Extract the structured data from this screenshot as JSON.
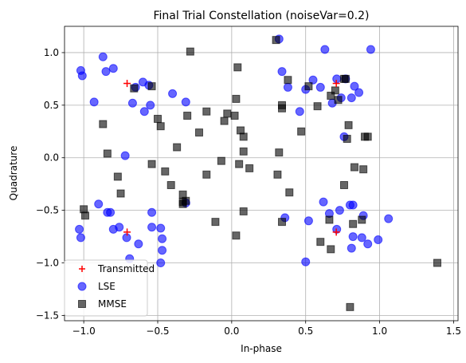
{
  "chart_data": {
    "type": "scatter",
    "title": "Final Trial Constellation (noiseVar=0.2)",
    "xlabel": "In-phase",
    "ylabel": "Quadrature",
    "xlim": [
      -1.13,
      1.53
    ],
    "ylim": [
      -1.55,
      1.25
    ],
    "xticks": [
      -1.0,
      -0.5,
      0.0,
      0.5,
      1.0,
      1.5
    ],
    "xtick_labels": [
      "−1.0",
      "−0.5",
      "0.0",
      "0.5",
      "1.0",
      "1.5"
    ],
    "yticks": [
      1.0,
      0.5,
      0.0,
      -0.5,
      -1.0,
      -1.5
    ],
    "ytick_labels": [
      "1.0",
      "0.5",
      "0.0",
      "−0.5",
      "−1.0",
      "−1.5"
    ],
    "grid": true,
    "legend_position": "lower-left",
    "series": [
      {
        "name": "Transmitted",
        "marker": "plus",
        "color": "#ff0000",
        "points": [
          [
            -0.707,
            0.707
          ],
          [
            0.707,
            0.707
          ],
          [
            -0.707,
            -0.707
          ],
          [
            0.707,
            -0.707
          ]
        ]
      },
      {
        "name": "LSE",
        "marker": "circle",
        "color": "#0000ff",
        "points": [
          [
            -1.02,
            0.83
          ],
          [
            -1.01,
            0.78
          ],
          [
            -0.93,
            0.53
          ],
          [
            -0.87,
            0.96
          ],
          [
            -0.85,
            0.82
          ],
          [
            -0.8,
            0.85
          ],
          [
            -0.67,
            0.52
          ],
          [
            -0.65,
            0.67
          ],
          [
            -0.6,
            0.72
          ],
          [
            -0.59,
            0.44
          ],
          [
            -0.55,
            0.5
          ],
          [
            -0.56,
            0.69
          ],
          [
            -0.4,
            0.61
          ],
          [
            -0.31,
            0.53
          ],
          [
            -0.72,
            0.02
          ],
          [
            -0.9,
            -0.44
          ],
          [
            -0.84,
            -0.52
          ],
          [
            -0.82,
            -0.52
          ],
          [
            -0.8,
            -0.68
          ],
          [
            -0.76,
            -0.66
          ],
          [
            -0.71,
            -0.76
          ],
          [
            -0.69,
            -0.96
          ],
          [
            -0.63,
            -0.82
          ],
          [
            -0.54,
            -0.66
          ],
          [
            -0.54,
            -0.52
          ],
          [
            -0.47,
            -0.88
          ],
          [
            -0.47,
            -0.77
          ],
          [
            -0.48,
            -1.0
          ],
          [
            -0.31,
            -0.43
          ],
          [
            -1.03,
            -0.68
          ],
          [
            -1.02,
            -0.76
          ],
          [
            0.32,
            1.13
          ],
          [
            0.34,
            0.82
          ],
          [
            0.38,
            0.67
          ],
          [
            0.46,
            0.44
          ],
          [
            0.5,
            0.65
          ],
          [
            0.55,
            0.74
          ],
          [
            0.6,
            0.67
          ],
          [
            0.63,
            1.03
          ],
          [
            0.68,
            0.52
          ],
          [
            0.71,
            0.75
          ],
          [
            0.74,
            0.57
          ],
          [
            0.77,
            0.75
          ],
          [
            0.81,
            0.57
          ],
          [
            0.83,
            0.68
          ],
          [
            0.86,
            0.62
          ],
          [
            0.94,
            1.03
          ],
          [
            0.76,
            0.2
          ],
          [
            0.5,
            -0.99
          ],
          [
            0.52,
            -0.6
          ],
          [
            0.62,
            -0.42
          ],
          [
            0.66,
            -0.53
          ],
          [
            0.71,
            -0.68
          ],
          [
            0.73,
            -0.5
          ],
          [
            0.8,
            -0.45
          ],
          [
            0.81,
            -0.86
          ],
          [
            0.82,
            -0.45
          ],
          [
            0.88,
            -0.76
          ],
          [
            0.89,
            -0.55
          ],
          [
            0.92,
            -0.82
          ],
          [
            0.99,
            -0.78
          ],
          [
            1.06,
            -0.58
          ],
          [
            -0.48,
            -0.67
          ],
          [
            0.82,
            -0.75
          ],
          [
            0.36,
            -0.57
          ]
        ]
      },
      {
        "name": "MMSE",
        "marker": "square",
        "color": "#000000",
        "points": [
          [
            -1.0,
            -0.49
          ],
          [
            -0.99,
            -0.55
          ],
          [
            -0.87,
            0.32
          ],
          [
            -0.84,
            0.04
          ],
          [
            -0.77,
            -0.18
          ],
          [
            -0.75,
            -0.34
          ],
          [
            -0.66,
            0.66
          ],
          [
            -0.54,
            0.68
          ],
          [
            -0.54,
            -0.06
          ],
          [
            -0.5,
            0.37
          ],
          [
            -0.48,
            0.3
          ],
          [
            -0.45,
            -0.13
          ],
          [
            -0.41,
            -0.26
          ],
          [
            -0.37,
            0.1
          ],
          [
            -0.33,
            -0.35
          ],
          [
            -0.33,
            -0.42
          ],
          [
            -0.31,
            -0.41
          ],
          [
            -0.3,
            0.4
          ],
          [
            -0.28,
            1.01
          ],
          [
            -0.22,
            0.24
          ],
          [
            -0.17,
            0.44
          ],
          [
            -0.17,
            -0.16
          ],
          [
            -0.11,
            -0.61
          ],
          [
            -0.07,
            -0.03
          ],
          [
            -0.03,
            0.42
          ],
          [
            -0.05,
            0.35
          ],
          [
            0.02,
            0.4
          ],
          [
            0.03,
            0.56
          ],
          [
            0.04,
            0.86
          ],
          [
            0.06,
            0.26
          ],
          [
            0.08,
            0.2
          ],
          [
            0.08,
            0.06
          ],
          [
            0.05,
            -0.06
          ],
          [
            0.08,
            -0.51
          ],
          [
            0.12,
            -0.1
          ],
          [
            0.03,
            -0.74
          ],
          [
            0.3,
            1.12
          ],
          [
            0.31,
            -0.16
          ],
          [
            0.32,
            0.05
          ],
          [
            0.34,
            0.5
          ],
          [
            0.34,
            0.47
          ],
          [
            0.38,
            0.74
          ],
          [
            0.39,
            -0.33
          ],
          [
            0.34,
            -0.61
          ],
          [
            0.47,
            0.25
          ],
          [
            0.52,
            0.68
          ],
          [
            0.58,
            0.49
          ],
          [
            0.6,
            -0.8
          ],
          [
            0.66,
            -0.59
          ],
          [
            0.67,
            0.59
          ],
          [
            0.67,
            -0.87
          ],
          [
            0.7,
            0.64
          ],
          [
            0.72,
            0.55
          ],
          [
            0.76,
            0.75
          ],
          [
            0.76,
            -0.26
          ],
          [
            0.77,
            0.75
          ],
          [
            0.78,
            0.18
          ],
          [
            0.79,
            0.31
          ],
          [
            0.8,
            -1.42
          ],
          [
            0.82,
            -0.63
          ],
          [
            0.83,
            -0.09
          ],
          [
            0.88,
            -0.59
          ],
          [
            0.9,
            0.2
          ],
          [
            0.92,
            0.2
          ],
          [
            0.89,
            -0.11
          ],
          [
            1.39,
            -1.0
          ],
          [
            -0.33,
            -0.44
          ]
        ]
      }
    ]
  }
}
